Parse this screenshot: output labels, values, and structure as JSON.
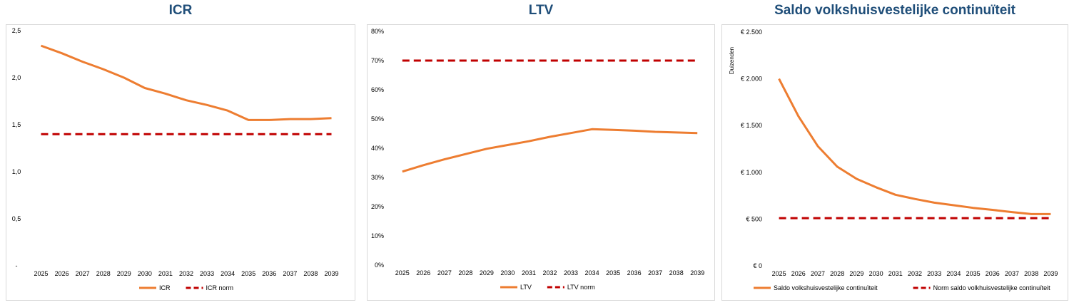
{
  "chart_data": [
    {
      "type": "line",
      "title": "ICR",
      "x": [
        "2025",
        "2026",
        "2027",
        "2028",
        "2029",
        "2030",
        "2031",
        "2032",
        "2033",
        "2034",
        "2035",
        "2036",
        "2037",
        "2038",
        "2039"
      ],
      "series": [
        {
          "name": "ICR",
          "color": "#ed7d31",
          "style": "solid",
          "values": [
            2.34,
            2.26,
            2.17,
            2.09,
            2.0,
            1.89,
            1.83,
            1.76,
            1.71,
            1.65,
            1.55,
            1.55,
            1.56,
            1.56,
            1.57
          ]
        },
        {
          "name": "ICR norm",
          "color": "#c00000",
          "style": "dashed",
          "values": [
            1.4,
            1.4,
            1.4,
            1.4,
            1.4,
            1.4,
            1.4,
            1.4,
            1.4,
            1.4,
            1.4,
            1.4,
            1.4,
            1.4,
            1.4
          ]
        }
      ],
      "ylim": [
        0,
        2.5
      ],
      "yticks": [
        0,
        0.5,
        1.0,
        1.5,
        2.0,
        2.5
      ],
      "ytick_labels": [
        "-",
        "0,5",
        "1,0",
        "1,5",
        "2,0",
        "2,5"
      ],
      "ylabel": "",
      "grid": false,
      "legend": "bottom"
    },
    {
      "type": "line",
      "title": "LTV",
      "x": [
        "2025",
        "2026",
        "2027",
        "2028",
        "2029",
        "2030",
        "2031",
        "2032",
        "2033",
        "2034",
        "2035",
        "2036",
        "2037",
        "2038",
        "2039"
      ],
      "series": [
        {
          "name": "LTV",
          "color": "#ed7d31",
          "style": "solid",
          "values": [
            32.0,
            34.2,
            36.2,
            38.0,
            39.8,
            41.1,
            42.4,
            43.9,
            45.2,
            46.5,
            46.3,
            46.0,
            45.6,
            45.4,
            45.2
          ]
        },
        {
          "name": "LTV norm",
          "color": "#c00000",
          "style": "dashed",
          "values": [
            70,
            70,
            70,
            70,
            70,
            70,
            70,
            70,
            70,
            70,
            70,
            70,
            70,
            70,
            70
          ]
        }
      ],
      "ylim": [
        0,
        80
      ],
      "yticks": [
        0,
        10,
        20,
        30,
        40,
        50,
        60,
        70,
        80
      ],
      "ytick_labels": [
        "0%",
        "10%",
        "20%",
        "30%",
        "40%",
        "50%",
        "60%",
        "70%",
        "80%"
      ],
      "ylabel": "",
      "grid": false,
      "legend": "bottom"
    },
    {
      "type": "line",
      "title": "Saldo volkshuisvestelijke continuïteit",
      "x": [
        "2025",
        "2026",
        "2027",
        "2028",
        "2029",
        "2030",
        "2031",
        "2032",
        "2033",
        "2034",
        "2035",
        "2036",
        "2037",
        "2038",
        "2039"
      ],
      "series": [
        {
          "name": "Saldo volkshuisvestelijke continuïteit",
          "color": "#ed7d31",
          "style": "solid",
          "values": [
            2000,
            1600,
            1280,
            1060,
            930,
            840,
            760,
            715,
            675,
            648,
            620,
            598,
            575,
            553,
            553
          ]
        },
        {
          "name": "Norm saldo volkhuisvestelijke continuïteit",
          "color": "#c00000",
          "style": "dashed",
          "values": [
            510,
            510,
            510,
            510,
            510,
            510,
            510,
            510,
            510,
            510,
            510,
            510,
            510,
            510,
            510
          ]
        }
      ],
      "ylim": [
        0,
        2500
      ],
      "yticks": [
        0,
        500,
        1000,
        1500,
        2000,
        2500
      ],
      "ytick_labels": [
        "€ 0",
        "€ 500",
        "€ 1.000",
        "€ 1.500",
        "€ 2.000",
        "€ 2.500"
      ],
      "ylabel": "Duizenden",
      "grid": false,
      "legend": "bottom"
    }
  ]
}
